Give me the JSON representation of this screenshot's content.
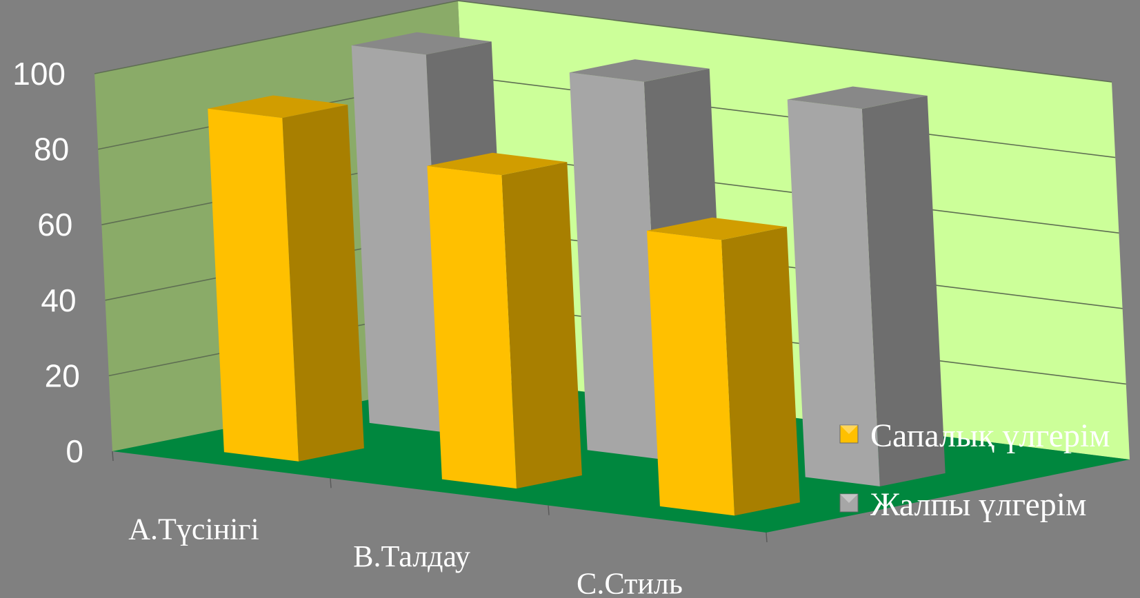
{
  "chart_data": {
    "type": "bar",
    "categories": [
      "A.Түсінігі",
      "B.Талдау",
      "C.Стиль"
    ],
    "series": [
      {
        "name": "Сапалық үлгерім",
        "values": [
          91,
          83,
          73
        ],
        "color": "#ffc000"
      },
      {
        "name": "Жалпы үлгерім",
        "values": [
          100,
          100,
          100
        ],
        "color": "#a6a6a6"
      }
    ],
    "ylim": [
      0,
      100
    ],
    "yticks": [
      0,
      20,
      40,
      60,
      80,
      100
    ],
    "grid": true,
    "legend_position": "right",
    "colors": {
      "background": "#808080",
      "back_wall": "#ccff99",
      "side_wall": "#8aab68",
      "floor": "#00873e"
    }
  }
}
